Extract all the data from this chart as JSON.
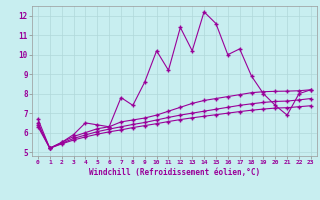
{
  "x": [
    0,
    1,
    2,
    3,
    4,
    5,
    6,
    7,
    8,
    9,
    10,
    11,
    12,
    13,
    14,
    15,
    16,
    17,
    18,
    19,
    20,
    21,
    22,
    23
  ],
  "line1": [
    6.7,
    5.2,
    5.5,
    5.9,
    6.5,
    6.4,
    6.3,
    7.8,
    7.4,
    8.6,
    10.2,
    9.2,
    11.4,
    10.2,
    12.2,
    11.6,
    10.0,
    10.3,
    8.9,
    8.0,
    7.4,
    6.9,
    8.0,
    8.2
  ],
  "line2": [
    6.5,
    5.2,
    5.5,
    5.8,
    6.0,
    6.2,
    6.3,
    6.55,
    6.65,
    6.75,
    6.9,
    7.1,
    7.3,
    7.5,
    7.65,
    7.75,
    7.85,
    7.95,
    8.05,
    8.1,
    8.12,
    8.13,
    8.15,
    8.2
  ],
  "line3": [
    6.4,
    5.2,
    5.45,
    5.7,
    5.88,
    6.05,
    6.18,
    6.3,
    6.42,
    6.52,
    6.65,
    6.78,
    6.9,
    7.0,
    7.1,
    7.2,
    7.3,
    7.4,
    7.48,
    7.55,
    7.6,
    7.62,
    7.68,
    7.75
  ],
  "line4": [
    6.3,
    5.2,
    5.42,
    5.62,
    5.78,
    5.92,
    6.04,
    6.14,
    6.26,
    6.36,
    6.46,
    6.57,
    6.67,
    6.76,
    6.84,
    6.92,
    7.0,
    7.08,
    7.15,
    7.21,
    7.26,
    7.28,
    7.33,
    7.38
  ],
  "line_color": "#990099",
  "bg_color": "#c8eef0",
  "grid_color": "#b0d8da",
  "ylabel_ticks": [
    5,
    6,
    7,
    8,
    9,
    10,
    11,
    12
  ],
  "xlabel": "Windchill (Refroidissement éolien,°C)",
  "xlim": [
    -0.5,
    23.5
  ],
  "ylim": [
    4.8,
    12.5
  ]
}
